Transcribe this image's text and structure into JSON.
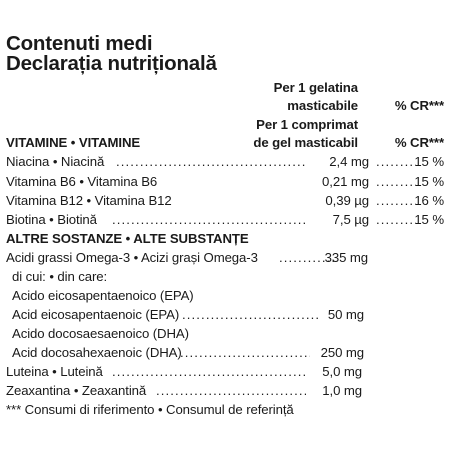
{
  "title_line1": "Contenuti medi",
  "title_line2": "Declarația nutrițională",
  "header": {
    "per_gel_line1": "Per 1 gelatina",
    "per_gel_line2": "masticabile",
    "cr_label_1": "% CR***",
    "per_comprimat_line1": "Per 1 comprimat",
    "per_comprimat_line2": "de gel masticabil",
    "cr_label_2": "% CR***"
  },
  "vitamins_heading": "VITAMINE • VITAMINE",
  "vitamins": [
    {
      "label": "Niacina • Niacină",
      "amount": "2,4 mg",
      "cr": "15 %"
    },
    {
      "label": "Vitamina B6 • Vitamina B6",
      "amount": "0,21 mg",
      "cr": "15 %"
    },
    {
      "label": "Vitamina B12 • Vitamina B12",
      "amount": "0,39 µg",
      "cr": "16 %"
    },
    {
      "label": "Biotina • Biotină",
      "amount": "7,5 µg",
      "cr": "15 %"
    }
  ],
  "other_heading": "ALTRE SOSTANZE • ALTE SUBSTANȚE",
  "other": {
    "omega3_label": "Acidi grassi Omega-3 • Acizi grași Omega-3",
    "omega3_amount": "335 mg",
    "of_which": "di cui: • din care:",
    "epa_it": "Acido eicosapentaenoico (EPA)",
    "epa_ro": "Acid eicosapentaenoic (EPA)",
    "epa_amount": "50 mg",
    "dha_it": "Acido docosaesaenoico (DHA)",
    "dha_ro": "Acid docosahexaenoic (DHA)",
    "dha_amount": "250 mg",
    "lutein_label": "Luteina • Luteină",
    "lutein_amount": "5,0 mg",
    "zeaxanthin_label": "Zeaxantina • Zeaxantină",
    "zeaxanthin_amount": "1,0 mg"
  },
  "footnote": "*** Consumi di riferimento • Consumul de referință"
}
